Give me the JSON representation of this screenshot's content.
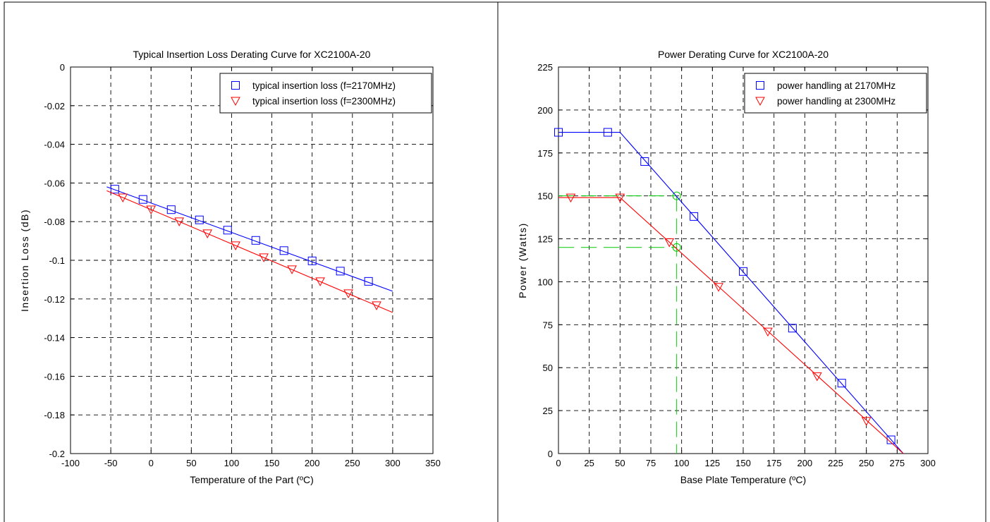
{
  "colors": {
    "series_a": "#0000ff",
    "series_b": "#ff0000",
    "guide": "#00cc00",
    "frame": "#000000"
  },
  "chart_data": [
    {
      "type": "line",
      "title": "Typical Insertion Loss Derating Curve for XC2100A-20",
      "xlabel": "Temperature of the Part (ºC)",
      "ylabel": "Insertion Loss (dB)",
      "xlim": [
        -100,
        350
      ],
      "ylim": [
        -0.2,
        0
      ],
      "xticks": [
        -100,
        -50,
        0,
        50,
        100,
        150,
        200,
        250,
        300,
        350
      ],
      "yticks": [
        0,
        -0.02,
        -0.04,
        -0.06,
        -0.08,
        -0.1,
        -0.12,
        -0.14,
        -0.16,
        -0.18,
        -0.2
      ],
      "xtick_labels": [
        "-100",
        "-50",
        "0",
        "50",
        "100",
        "150",
        "200",
        "250",
        "300",
        "350"
      ],
      "ytick_labels": [
        "0",
        "-0.02",
        "-0.04",
        "-0.06",
        "-0.08",
        "-0.1",
        "-0.12",
        "-0.14",
        "-0.16",
        "-0.18",
        "-0.2"
      ],
      "grid": true,
      "legend_position": "top-right",
      "series": [
        {
          "name": "typical insertion loss (f=2170MHz)",
          "color": "#0000ff",
          "marker": "square",
          "line": [
            [
              -55,
              -0.062
            ],
            [
              300,
              -0.116
            ]
          ],
          "points": [
            [
              -45,
              -0.0632
            ],
            [
              -10,
              -0.0685
            ],
            [
              25,
              -0.0738
            ],
            [
              60,
              -0.0791
            ],
            [
              95,
              -0.0844
            ],
            [
              130,
              -0.0897
            ],
            [
              165,
              -0.095
            ],
            [
              200,
              -0.1003
            ],
            [
              235,
              -0.1056
            ],
            [
              270,
              -0.1109
            ]
          ]
        },
        {
          "name": "typical insertion loss (f=2300MHz)",
          "color": "#ff0000",
          "marker": "triangle-down",
          "line": [
            [
              -55,
              -0.064
            ],
            [
              300,
              -0.127
            ]
          ],
          "points": [
            [
              -35,
              -0.0675
            ],
            [
              0,
              -0.0737
            ],
            [
              35,
              -0.0799
            ],
            [
              70,
              -0.0861
            ],
            [
              105,
              -0.0923
            ],
            [
              140,
              -0.0985
            ],
            [
              175,
              -0.1047
            ],
            [
              210,
              -0.1109
            ],
            [
              245,
              -0.1171
            ],
            [
              280,
              -0.1233
            ]
          ]
        }
      ]
    },
    {
      "type": "line",
      "title": "Power Derating Curve for XC2100A-20",
      "xlabel": "Base Plate Temperature (ºC)",
      "ylabel": "Power (Watts)",
      "xlim": [
        0,
        300
      ],
      "ylim": [
        0,
        225
      ],
      "xticks": [
        0,
        25,
        50,
        75,
        100,
        125,
        150,
        175,
        200,
        225,
        250,
        275,
        300
      ],
      "yticks": [
        0,
        25,
        50,
        75,
        100,
        125,
        150,
        175,
        200,
        225
      ],
      "xtick_labels": [
        "0",
        "25",
        "50",
        "75",
        "100",
        "125",
        "150",
        "175",
        "200",
        "225",
        "250",
        "275",
        "300"
      ],
      "ytick_labels": [
        "0",
        "25",
        "50",
        "75",
        "100",
        "125",
        "150",
        "175",
        "200",
        "225"
      ],
      "grid": true,
      "legend_position": "top-right",
      "series": [
        {
          "name": "power handling at 2170MHz",
          "color": "#0000ff",
          "marker": "square",
          "line": [
            [
              0,
              187
            ],
            [
              50,
              187
            ],
            [
              280,
              0
            ]
          ],
          "points": [
            [
              0,
              187
            ],
            [
              40,
              187
            ],
            [
              70,
              170
            ],
            [
              110,
              138
            ],
            [
              150,
              106
            ],
            [
              190,
              73
            ],
            [
              230,
              41
            ],
            [
              270,
              8
            ]
          ]
        },
        {
          "name": "power handling at 2300MHz",
          "color": "#ff0000",
          "marker": "triangle-down",
          "line": [
            [
              0,
              149
            ],
            [
              50,
              149
            ],
            [
              280,
              0
            ]
          ],
          "points": [
            [
              10,
              149
            ],
            [
              50,
              149
            ],
            [
              90,
              123
            ],
            [
              130,
              97
            ],
            [
              170,
              71
            ],
            [
              210,
              45
            ],
            [
              250,
              19
            ]
          ]
        }
      ],
      "guides": {
        "color": "#00cc00",
        "lines": [
          {
            "from": [
              0,
              150
            ],
            "to": [
              96,
              150
            ]
          },
          {
            "from": [
              0,
              120
            ],
            "to": [
              96,
              120
            ]
          },
          {
            "from": [
              96,
              150
            ],
            "to": [
              96,
              0
            ]
          }
        ],
        "circles": [
          [
            96,
            150
          ],
          [
            96,
            120
          ]
        ]
      }
    }
  ]
}
